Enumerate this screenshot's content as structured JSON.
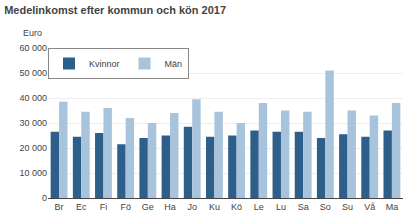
{
  "chart_data": {
    "type": "bar",
    "title": "Medelinkomst efter kommun och kön 2017",
    "ylabel": "Euro",
    "categories": [
      "Br",
      "Ec",
      "Fi",
      "Fö",
      "Ge",
      "Ha",
      "Jo",
      "Ku",
      "Kö",
      "Le",
      "Lu",
      "Sa",
      "So",
      "Su",
      "Vå",
      "Ma"
    ],
    "series": [
      {
        "name": "Kvinnor",
        "color": "#2E5F8A",
        "values": [
          26500,
          24500,
          26000,
          21500,
          24000,
          25000,
          28500,
          24500,
          25000,
          27000,
          26500,
          26500,
          24000,
          25500,
          24500,
          27000
        ]
      },
      {
        "name": "Män",
        "color": "#A8C4DC",
        "values": [
          38500,
          34500,
          36000,
          32000,
          30000,
          34000,
          39500,
          34500,
          30000,
          38000,
          35000,
          34500,
          51000,
          35000,
          33000,
          38000
        ]
      }
    ],
    "ylim": [
      0,
      60000
    ],
    "yticks": [
      0,
      {
        "value": 10000,
        "label": "10 000"
      },
      {
        "value": 20000,
        "label": "20 000"
      },
      {
        "value": 30000,
        "label": "30 000"
      },
      {
        "value": 40000,
        "label": "40 000"
      },
      {
        "value": 50000,
        "label": "50 000"
      },
      {
        "value": 60000,
        "label": "60 000"
      }
    ],
    "grid": true,
    "legend": "upper left"
  }
}
